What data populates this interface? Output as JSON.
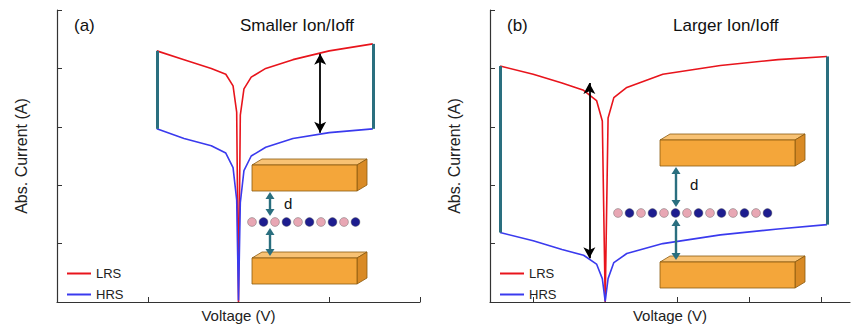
{
  "chart_data": [
    {
      "type": "line",
      "panel_label": "(a)",
      "title": "Smaller Ion/Ioff",
      "x_label": "Voltage (V)",
      "y_label": "Abs. Current (A)",
      "xlim": [
        -1,
        1
      ],
      "ylim": [
        0,
        10
      ],
      "xticks": [
        -1,
        -0.5,
        0,
        0.5,
        1
      ],
      "yticks": [
        0,
        2,
        4,
        6,
        8,
        10
      ],
      "tick_labels": false,
      "grid": false,
      "legend": "lower left",
      "series": [
        {
          "name": "LRS",
          "color": "#e8141c",
          "x": [
            -0.45,
            -0.3,
            -0.15,
            -0.07,
            -0.03,
            -0.01,
            0,
            0.01,
            0.03,
            0.07,
            0.15,
            0.3,
            0.5,
            0.74
          ],
          "values": [
            8.6,
            8.3,
            8.0,
            7.8,
            7.4,
            6.5,
            0,
            6.4,
            7.3,
            7.7,
            8.0,
            8.3,
            8.6,
            8.84
          ]
        },
        {
          "name": "HRS",
          "color": "#3a3aee",
          "x": [
            -0.45,
            -0.3,
            -0.15,
            -0.07,
            -0.03,
            -0.01,
            0,
            0.01,
            0.03,
            0.07,
            0.15,
            0.3,
            0.5,
            0.74
          ],
          "values": [
            5.93,
            5.6,
            5.35,
            5.1,
            4.6,
            3.5,
            0.05,
            3.4,
            4.5,
            5.0,
            5.3,
            5.6,
            5.8,
            5.93
          ]
        }
      ],
      "ratio_arrow": {
        "x": 0.45,
        "y": [
          8.5,
          5.8
        ]
      },
      "inset_label": "d"
    },
    {
      "type": "line",
      "panel_label": "(b)",
      "title": "Larger Ion/Ioff",
      "x_label": "Voltage (V)",
      "y_label": "Abs. Current (A)",
      "xlim": [
        -0.8,
        1.7
      ],
      "ylim": [
        0,
        10
      ],
      "xticks": [
        -0.5,
        0,
        0.5,
        1,
        1.5
      ],
      "yticks": [
        0,
        2,
        4,
        6,
        8,
        10
      ],
      "tick_labels": false,
      "grid": false,
      "legend": "lower left",
      "series": [
        {
          "name": "LRS",
          "color": "#e8141c",
          "x": [
            -0.73,
            -0.5,
            -0.3,
            -0.15,
            -0.06,
            -0.02,
            0,
            0.02,
            0.06,
            0.15,
            0.4,
            0.8,
            1.2,
            1.54
          ],
          "values": [
            8.08,
            7.8,
            7.5,
            7.25,
            6.9,
            6.2,
            0,
            6.3,
            7.0,
            7.35,
            7.8,
            8.1,
            8.3,
            8.41
          ]
        },
        {
          "name": "HRS",
          "color": "#3a3aee",
          "x": [
            -0.73,
            -0.5,
            -0.3,
            -0.15,
            -0.06,
            -0.02,
            0,
            0.02,
            0.06,
            0.15,
            0.4,
            0.8,
            1.2,
            1.54
          ],
          "values": [
            2.38,
            2.1,
            1.8,
            1.6,
            1.3,
            0.8,
            0.02,
            0.8,
            1.35,
            1.66,
            2.0,
            2.3,
            2.5,
            2.65
          ]
        }
      ],
      "ratio_arrow": {
        "x": -0.11,
        "y": [
          7.5,
          1.5
        ]
      },
      "inset_label": "d"
    }
  ]
}
